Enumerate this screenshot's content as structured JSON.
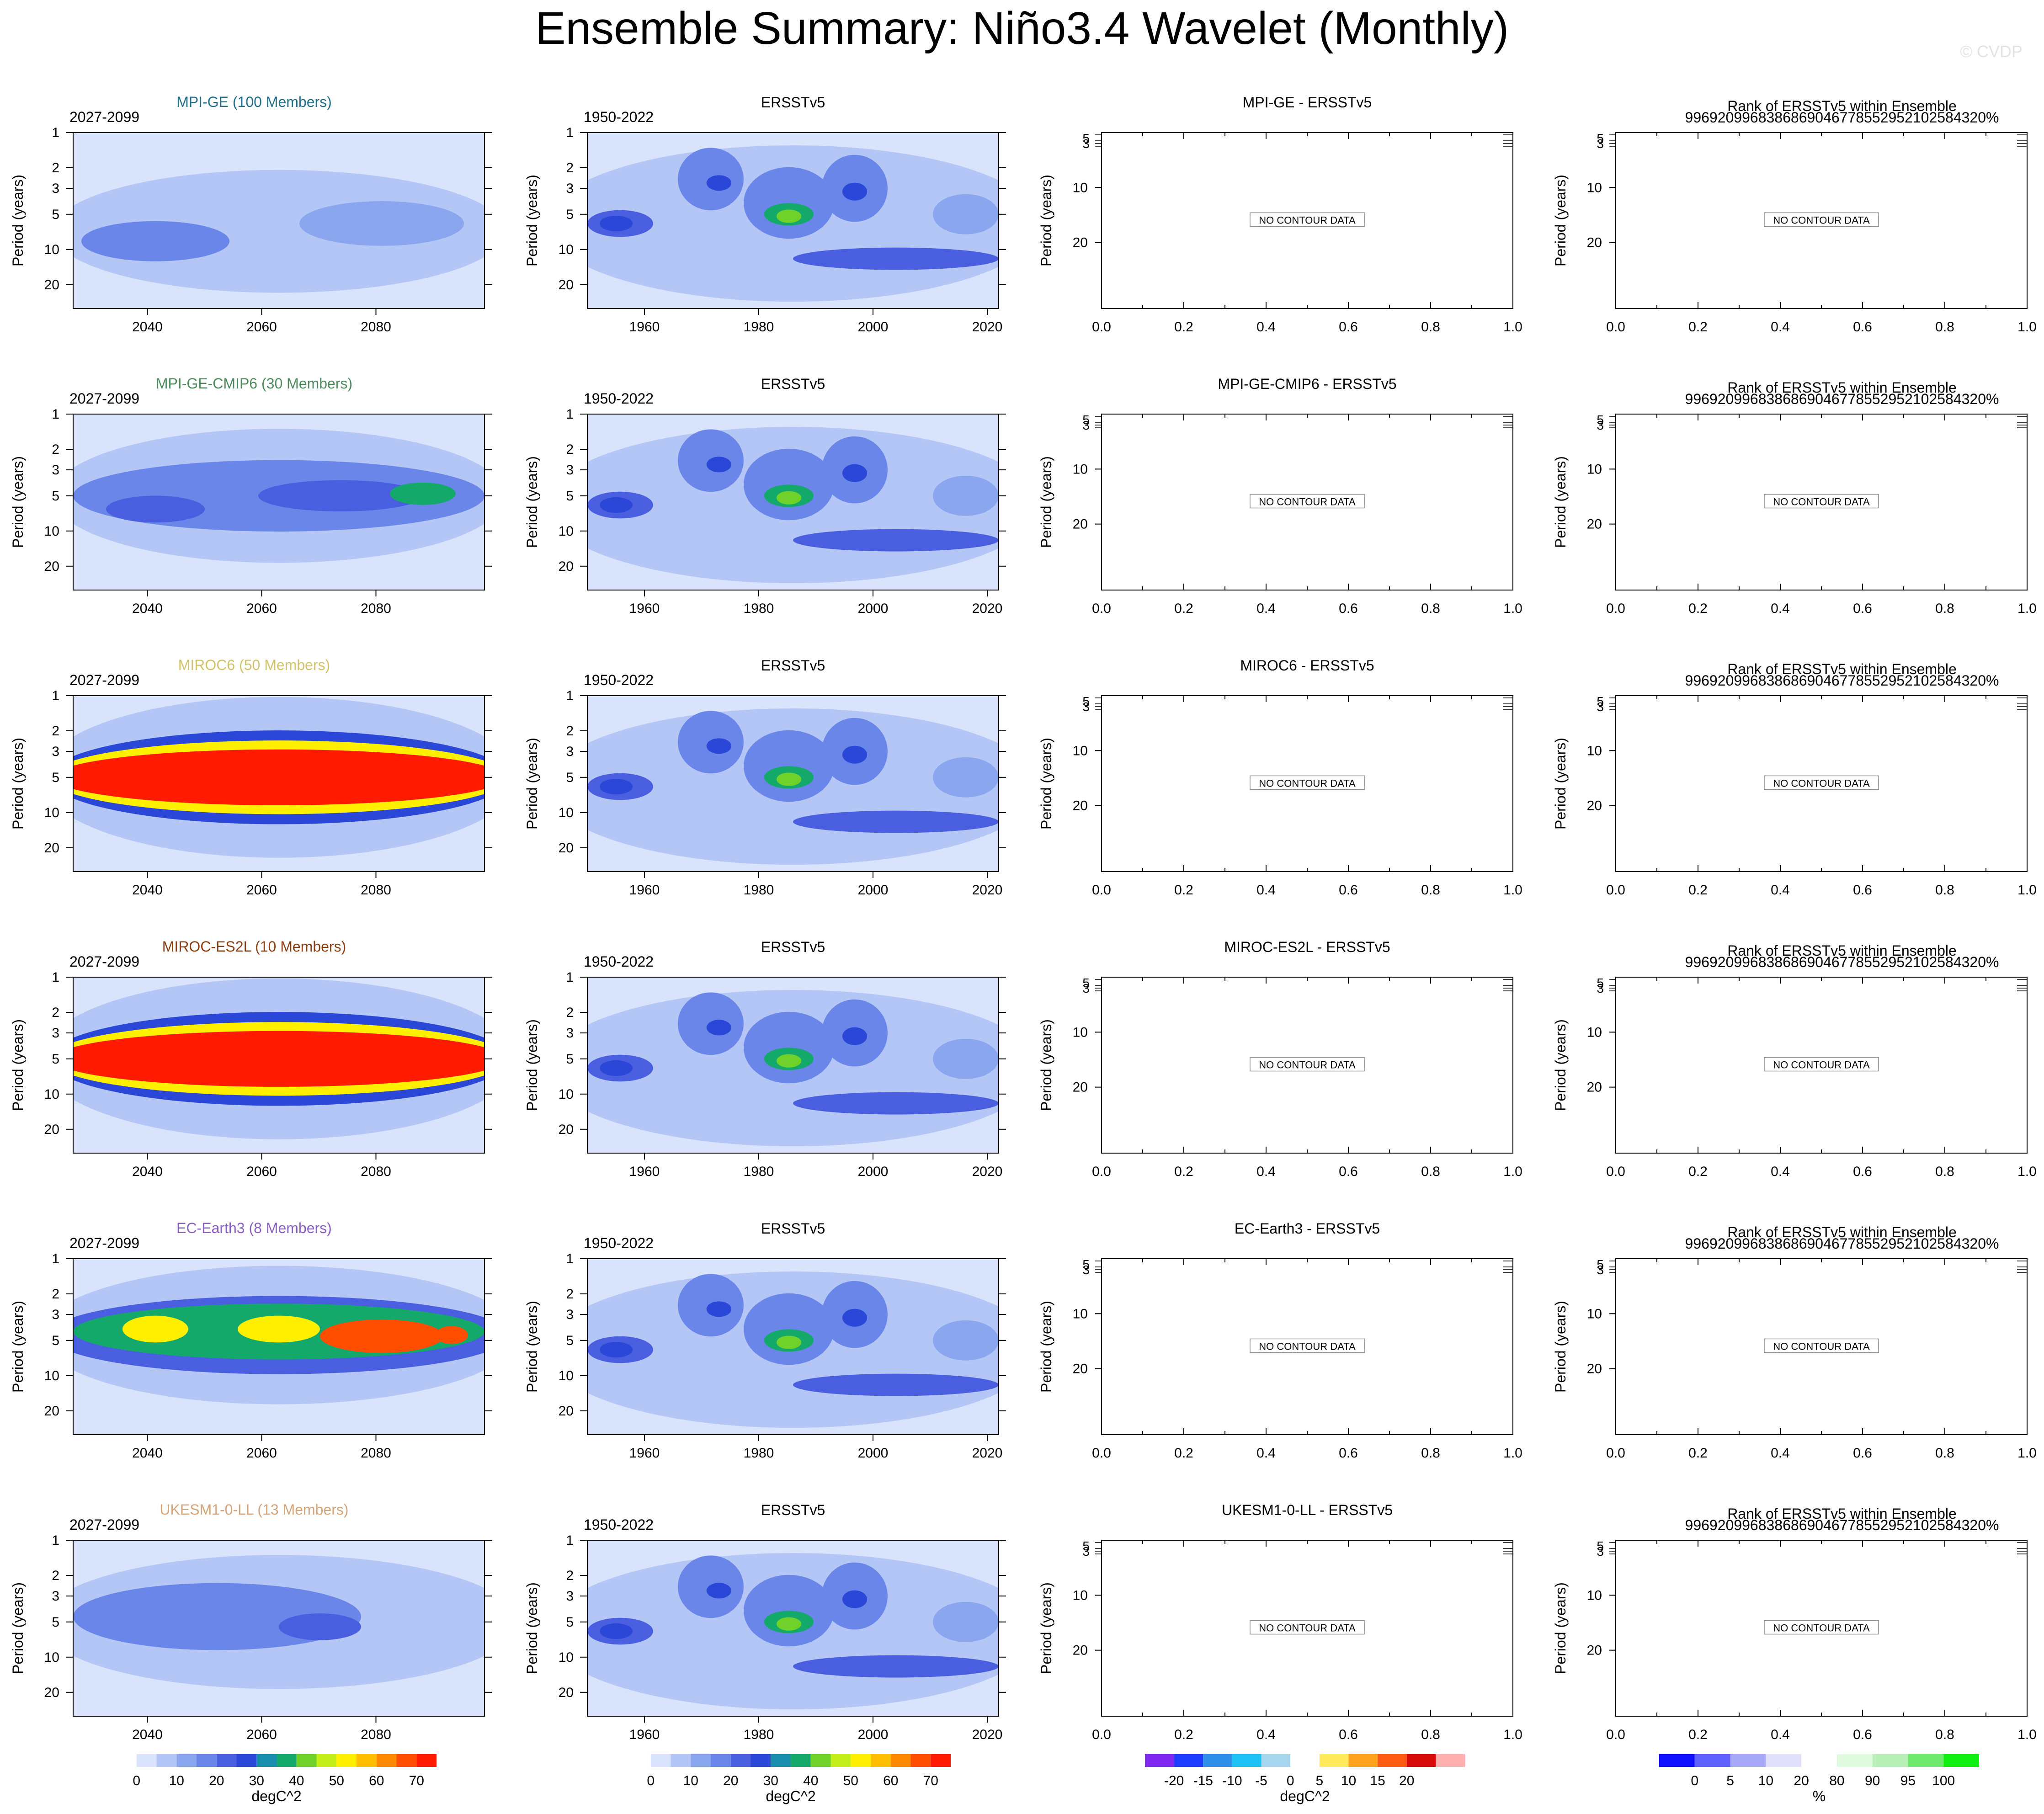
{
  "figure": {
    "title": "Ensemble Summary: Niño3.4 Wavelet (Monthly)",
    "watermark": "© CVDP",
    "no_data_text": "NO CONTOUR DATA",
    "ylabel": "Period (years)",
    "rank_title": "Rank of ERSSTv5 within Ensemble",
    "rank_subtitle": "9969209968386869046778552952102584320%"
  },
  "chart_data": {
    "type": "heatmap",
    "rows": [
      {
        "model": "MPI-GE (100 Members)",
        "color": "#1f6f8b",
        "years": "2027-2099",
        "diff_title": "MPI-GE - ERSSTv5",
        "pattern": "weak"
      },
      {
        "model": "MPI-GE-CMIP6 (30 Members)",
        "color": "#4e8a5e",
        "years": "2027-2099",
        "diff_title": "MPI-GE-CMIP6 - ERSSTv5",
        "pattern": "moderate"
      },
      {
        "model": "MIROC6 (50 Members)",
        "color": "#d2c36a",
        "years": "2027-2099",
        "diff_title": "MIROC6 - ERSSTv5",
        "pattern": "strong"
      },
      {
        "model": "MIROC-ES2L (10 Members)",
        "color": "#8b3e12",
        "years": "2027-2099",
        "diff_title": "MIROC-ES2L - ERSSTv5",
        "pattern": "strong"
      },
      {
        "model": "EC-Earth3 (8 Members)",
        "color": "#8a5fc4",
        "years": "2027-2099",
        "diff_title": "EC-Earth3 - ERSSTv5",
        "pattern": "medium-strong"
      },
      {
        "model": "UKESM1-0-LL (13 Members)",
        "color": "#d4a47a",
        "years": "2027-2099",
        "diff_title": "UKESM1-0-LL - ERSSTv5",
        "pattern": "weak-moderate"
      }
    ],
    "obs": {
      "title": "ERSSTv5",
      "years": "1950-2022"
    },
    "model_xticks": [
      "2040",
      "2060",
      "2080"
    ],
    "model_xrange": [
      2027,
      2099
    ],
    "obs_xticks": [
      "1960",
      "1980",
      "2000",
      "2020"
    ],
    "obs_xrange": [
      1950,
      2022
    ],
    "empty_xticks": [
      "0.0",
      "0.2",
      "0.4",
      "0.6",
      "0.8",
      "1.0"
    ],
    "yticks": [
      "1",
      "2",
      "3",
      "5",
      "10",
      "20"
    ],
    "yrange": [
      1,
      32
    ],
    "yscale": "log",
    "empty_yticks": [
      "10",
      "20"
    ],
    "colorbars": [
      {
        "unit": "degC^2",
        "labels": [
          "0",
          "10",
          "20",
          "30",
          "40",
          "50",
          "60",
          "70"
        ],
        "colors": [
          "#ffffff",
          "#d9e3fb",
          "#b4c6f5",
          "#8aa6ee",
          "#6a86e8",
          "#4a5fe0",
          "#2a47d8",
          "#1b8fb0",
          "#14a86a",
          "#6fd12a",
          "#c4ee18",
          "#fff000",
          "#ffbe00",
          "#ff8a00",
          "#ff4e00",
          "#ff1a00"
        ]
      },
      {
        "unit": "degC^2",
        "labels": [
          "0",
          "10",
          "20",
          "30",
          "40",
          "50",
          "60",
          "70"
        ],
        "colors": [
          "#ffffff",
          "#d9e3fb",
          "#b4c6f5",
          "#8aa6ee",
          "#6a86e8",
          "#4a5fe0",
          "#2a47d8",
          "#1b8fb0",
          "#14a86a",
          "#6fd12a",
          "#c4ee18",
          "#fff000",
          "#ffbe00",
          "#ff8a00",
          "#ff4e00",
          "#ff1a00"
        ]
      },
      {
        "unit": "degC^2",
        "labels": [
          "-20",
          "-15",
          "-10",
          "-5",
          "0",
          "5",
          "10",
          "15",
          "20"
        ],
        "colors": [
          "#7f28f0",
          "#1e3cff",
          "#2f8fe9",
          "#1ec2f5",
          "#a8d6ee",
          "#ffffff",
          "#ffe85a",
          "#ffa21e",
          "#ff5a14",
          "#d70a0a",
          "#ffb0b0"
        ]
      },
      {
        "unit": "%",
        "labels": [
          "0",
          "5",
          "10",
          "20",
          "80",
          "90",
          "95",
          "100"
        ],
        "colors": [
          "#1010ff",
          "#6060ff",
          "#a8a8f8",
          "#e0e0fa",
          "#ffffff",
          "#e0fae0",
          "#b8f0b8",
          "#6eea6e",
          "#10f010"
        ]
      }
    ]
  }
}
